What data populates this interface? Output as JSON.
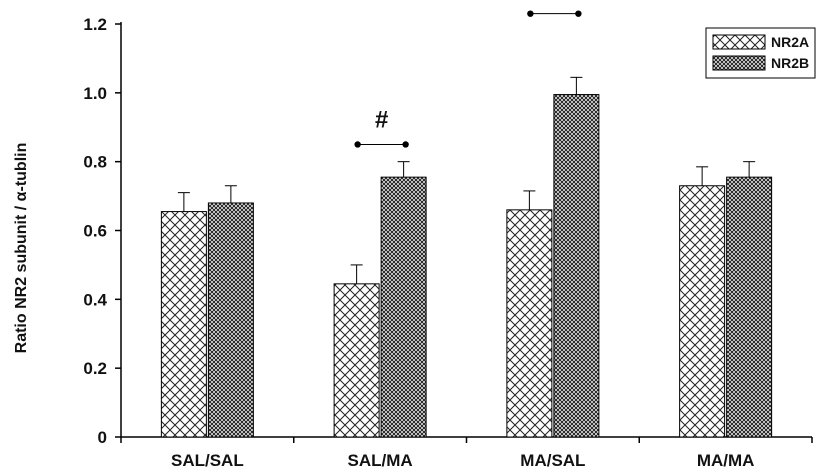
{
  "chart_data": {
    "type": "bar",
    "ylabel": "Ratio NR2 subunit / α-tublin",
    "ylim": [
      0,
      1.2
    ],
    "yticks": [
      "0",
      "0.2",
      "0.4",
      "0.6",
      "0.8",
      "1.0",
      "1.2"
    ],
    "categories": [
      "SAL/SAL",
      "SAL/MA",
      "MA/SAL",
      "MA/MA"
    ],
    "series": [
      {
        "name": "NR2A",
        "pattern": "crosshatch",
        "values": [
          0.655,
          0.445,
          0.66,
          0.73
        ],
        "errors": [
          0.055,
          0.055,
          0.055,
          0.055
        ]
      },
      {
        "name": "NR2B",
        "pattern": "dense-mesh",
        "values": [
          0.68,
          0.755,
          0.995,
          0.755
        ],
        "errors": [
          0.05,
          0.045,
          0.05,
          0.045
        ]
      }
    ],
    "legend": "top-right",
    "annotations": [
      {
        "text": "#",
        "category": "SAL/MA",
        "bracket_y": 0.85
      },
      {
        "text": "#",
        "category": "MA/SAL",
        "bracket_y": 1.23
      }
    ],
    "colors": {
      "bar_fill": "#ffffff",
      "pattern_ink": "#222222",
      "axis": "#000000"
    }
  }
}
